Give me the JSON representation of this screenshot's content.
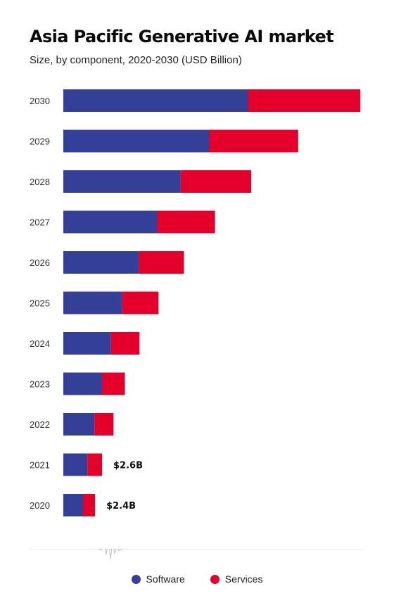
{
  "title": "Asia Pacific Generative AI market",
  "subtitle": "Size, by component, 2020-2030 (USD Billion)",
  "colors": {
    "software": "#343f98",
    "services": "#e4002b"
  },
  "legend": {
    "software": "Software",
    "services": "Services"
  },
  "chart_data": {
    "type": "bar",
    "orientation": "horizontal",
    "stacked": true,
    "categories": [
      "2030",
      "2029",
      "2028",
      "2027",
      "2026",
      "2025",
      "2024",
      "2023",
      "2022",
      "2021",
      "2020"
    ],
    "series": [
      {
        "name": "Software",
        "values": [
          29.1,
          23.0,
          18.5,
          14.8,
          11.9,
          9.3,
          7.5,
          6.1,
          4.9,
          3.8,
          3.1
        ]
      },
      {
        "name": "Services",
        "values": [
          17.7,
          14.0,
          11.1,
          9.1,
          7.1,
          5.7,
          4.5,
          3.6,
          3.0,
          2.3,
          1.9
        ]
      }
    ],
    "annotations": [
      {
        "category": "2021",
        "text": "$2.6B"
      },
      {
        "category": "2020",
        "text": "$2.4B"
      }
    ],
    "xlim": [
      0,
      47
    ],
    "grid": false,
    "legend_position": "bottom"
  }
}
